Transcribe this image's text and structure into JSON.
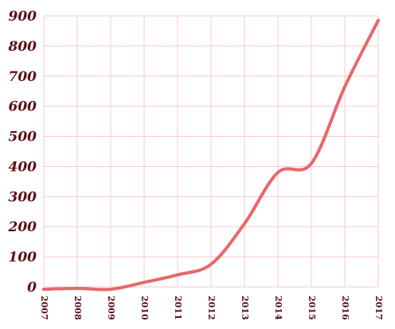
{
  "chart_data": {
    "type": "line",
    "title": "",
    "xlabel": "",
    "ylabel": "",
    "x": [
      "2007",
      "2008",
      "2009",
      "2010",
      "2011",
      "2012",
      "2013",
      "2014",
      "2015",
      "2016",
      "2017"
    ],
    "series": [
      {
        "values": [
          -8,
          -5,
          -8,
          15,
          40,
          75,
          210,
          380,
          410,
          665,
          885
        ],
        "color": "#e8676b"
      }
    ],
    "ylim": [
      0,
      900
    ],
    "yticks": [
      0,
      100,
      200,
      300,
      400,
      500,
      600,
      700,
      800,
      900
    ],
    "grid": true,
    "legend": "none"
  }
}
